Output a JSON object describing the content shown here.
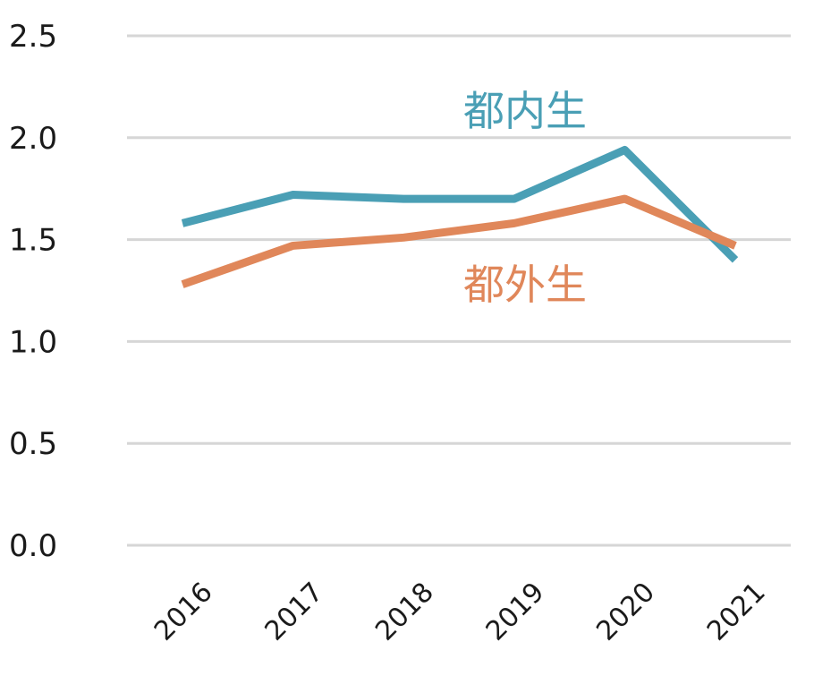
{
  "chart_data": {
    "type": "line",
    "x": [
      "2016",
      "2017",
      "2018",
      "2019",
      "2020",
      "2021"
    ],
    "y_ticks": [
      "0.0",
      "0.5",
      "1.0",
      "1.5",
      "2.0",
      "2.5"
    ],
    "ylim": [
      0,
      2.5
    ],
    "grid": true,
    "legend": "inline labels",
    "series": [
      {
        "name": "都内生",
        "color": "#4a9fb5",
        "values": [
          1.58,
          1.72,
          1.7,
          1.7,
          1.94,
          1.4
        ]
      },
      {
        "name": "都外生",
        "color": "#e0875a",
        "values": [
          1.28,
          1.47,
          1.51,
          1.58,
          1.7,
          1.47
        ]
      }
    ]
  }
}
